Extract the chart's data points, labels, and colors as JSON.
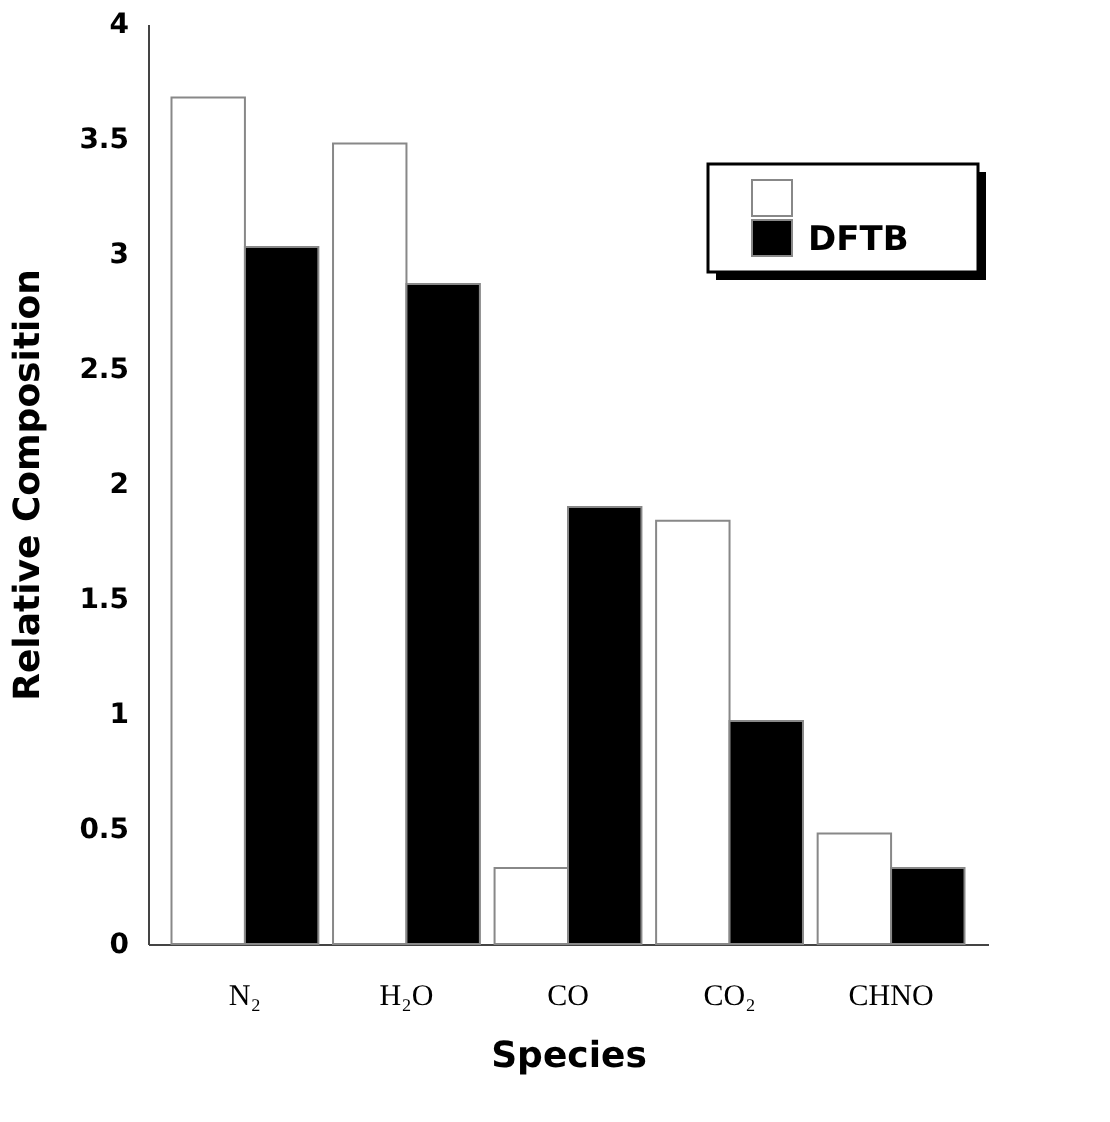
{
  "chart_data": {
    "type": "bar",
    "xlabel": "Species",
    "ylabel": "Relative  Composition",
    "categories": [
      "N₂",
      "H₂O",
      "CO",
      "CO₂",
      "CHNO"
    ],
    "series": [
      {
        "color": "#ffffff",
        "values": [
          3.68,
          3.48,
          0.33,
          1.84,
          0.48
        ]
      },
      {
        "name": "DFTB",
        "color": "#000000",
        "values": [
          3.03,
          2.87,
          1.9,
          0.97,
          0.33
        ]
      }
    ],
    "ylim": [
      0,
      4
    ],
    "yticks": [
      0,
      0.5,
      1,
      1.5,
      2,
      2.5,
      3,
      3.5,
      4
    ],
    "grid": false,
    "legend": "top right"
  }
}
